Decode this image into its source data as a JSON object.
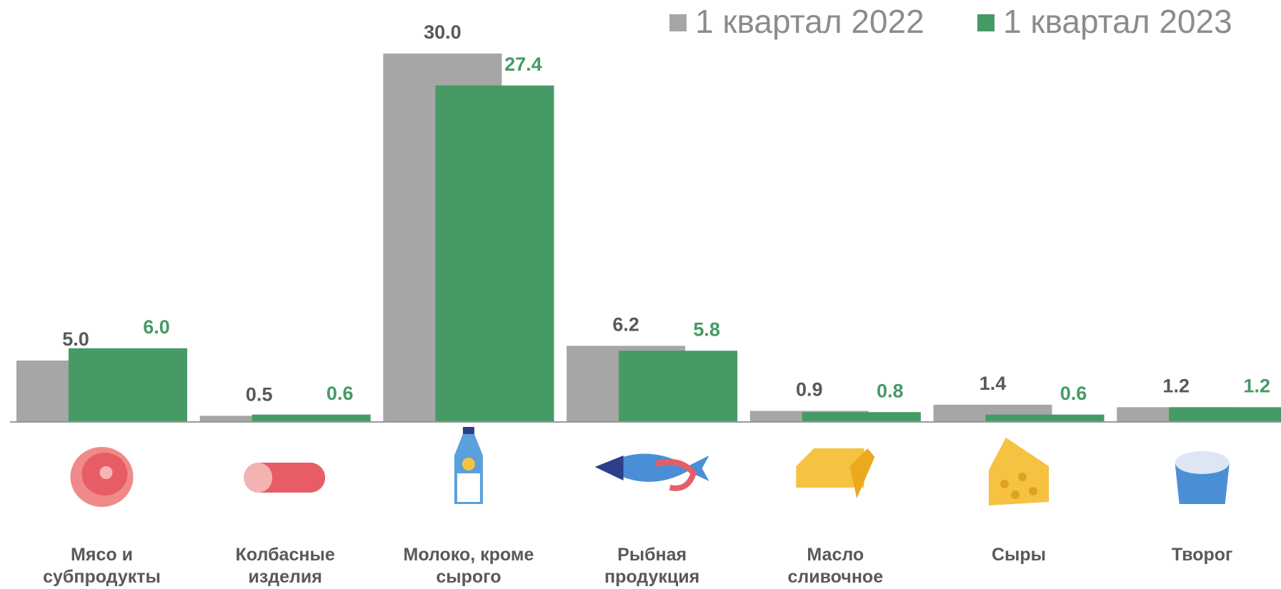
{
  "chart_data": {
    "type": "bar",
    "categories": [
      "Мясо и субпродукты",
      "Колбасные изделия",
      "Молоко, кроме сырого",
      "Рыбная продукция",
      "Масло сливочное",
      "Сыры",
      "Творог"
    ],
    "series": [
      {
        "name": "1 квартал 2022",
        "color": "#a6a6a6",
        "values": [
          5.0,
          0.5,
          30.0,
          6.2,
          0.9,
          1.4,
          1.2
        ],
        "value_labels": [
          "5.0",
          "0.5",
          "30.0",
          "6.2",
          "0.9",
          "1.4",
          "1.2"
        ]
      },
      {
        "name": "1 квартал 2023",
        "color": "#469a66",
        "values": [
          6.0,
          0.6,
          27.4,
          5.8,
          0.8,
          0.6,
          1.2
        ],
        "value_labels": [
          "6.0",
          "0.6",
          "27.4",
          "5.8",
          "0.8",
          "0.6",
          "1.2"
        ]
      }
    ],
    "legend": "top-right"
  }
}
